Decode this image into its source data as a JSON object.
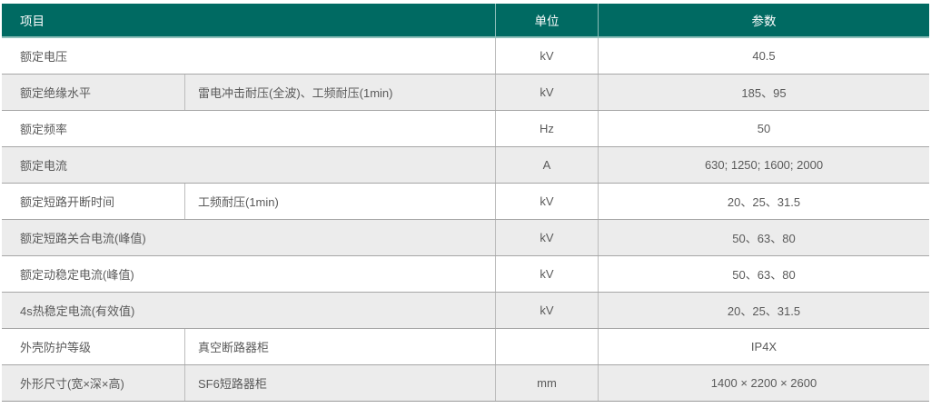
{
  "colors": {
    "header_bg": "#006A62",
    "header_text": "#FFFFFF",
    "header_edge": "#8FC0BB",
    "zebra_row_bg": "#ECECEC",
    "body_text": "#5A5A5A",
    "grid_line": "#A6A6A6"
  },
  "table": {
    "header": {
      "item": "项目",
      "unit": "单位",
      "param": "参数"
    },
    "rows": [
      {
        "item": "额定电压",
        "sub": "",
        "unit": "kV",
        "param": "40.5"
      },
      {
        "item": "额定绝缘水平",
        "sub": "雷电冲击耐压(全波)、工频耐压(1min)",
        "unit": "kV",
        "param": "185、95"
      },
      {
        "item": "额定频率",
        "sub": "",
        "unit": "Hz",
        "param": "50"
      },
      {
        "item": "额定电流",
        "sub": "",
        "unit": "A",
        "param": "630; 1250; 1600; 2000"
      },
      {
        "item": "额定短路开断时间",
        "sub": "工频耐压(1min)",
        "unit": "kV",
        "param": "20、25、31.5"
      },
      {
        "item": "额定短路关合电流(峰值)",
        "sub": "",
        "unit": "kV",
        "param": "50、63、80"
      },
      {
        "item": "额定动稳定电流(峰值)",
        "sub": "",
        "unit": "kV",
        "param": "50、63、80"
      },
      {
        "item": "4s热稳定电流(有效值)",
        "sub": "",
        "unit": "kV",
        "param": "20、25、31.5"
      },
      {
        "item": "外壳防护等级",
        "sub": "真空断路器柜",
        "unit": "",
        "param": "IP4X"
      },
      {
        "item": "外形尺寸(宽×深×高)",
        "sub": "SF6短路器柜",
        "unit": "mm",
        "param": "1400 × 2200 × 2600"
      }
    ]
  }
}
